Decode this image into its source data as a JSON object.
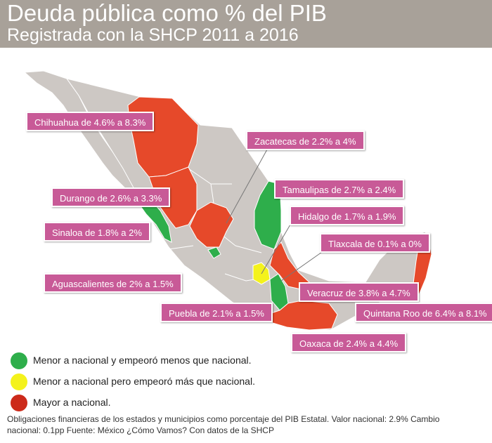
{
  "header": {
    "title": "Deuda pública como % del PIB",
    "subtitle": "Registrada con la SHCP 2011 a 2016"
  },
  "colors": {
    "green": "#2eae4b",
    "yellow": "#f4f21c",
    "red": "#e6492a",
    "label_bg": "#c85a97",
    "land": "#cdc8c4"
  },
  "labels": [
    {
      "id": "chihuahua",
      "text": "Chihuahua de 4.6% a 8.3%"
    },
    {
      "id": "zacatecas",
      "text": "Zacatecas de 2.2% a 4%"
    },
    {
      "id": "tamaulipas",
      "text": "Tamaulipas de 2.7% a 2.4%"
    },
    {
      "id": "durango",
      "text": "Durango de 2.6% a 3.3%"
    },
    {
      "id": "hidalgo",
      "text": "Hidalgo de 1.7% a 1.9%"
    },
    {
      "id": "sinaloa",
      "text": "Sinaloa de 1.8% a 2%"
    },
    {
      "id": "tlaxcala",
      "text": "Tlaxcala de 0.1% a 0%"
    },
    {
      "id": "aguascalientes",
      "text": "Aguascalientes de 2% a 1.5%"
    },
    {
      "id": "veracruz",
      "text": "Veracruz de 3.8% a 4.7%"
    },
    {
      "id": "puebla",
      "text": "Puebla de 2.1% a 1.5%"
    },
    {
      "id": "quintanaroo",
      "text": "Quintana Roo de 6.4% a 8.1%"
    },
    {
      "id": "oaxaca",
      "text": "Oaxaca de 2.4% a 4.4%"
    }
  ],
  "legend": [
    {
      "color": "#2eae4b",
      "text": "Menor a nacional y empeoró menos que nacional."
    },
    {
      "color": "#f4f21c",
      "text": "Menor a nacional pero empeoró más que nacional."
    },
    {
      "color": "#cc2a1a",
      "text": "Mayor a nacional."
    }
  ],
  "footnote": "Obligaciones financieras de los estados y municipios como porcentaje del PIB Estatal. Valor nacional: 2.9%  Cambio nacional: 0.1pp Fuente: México ¿Cómo Vamos? Con datos de la SHCP"
}
